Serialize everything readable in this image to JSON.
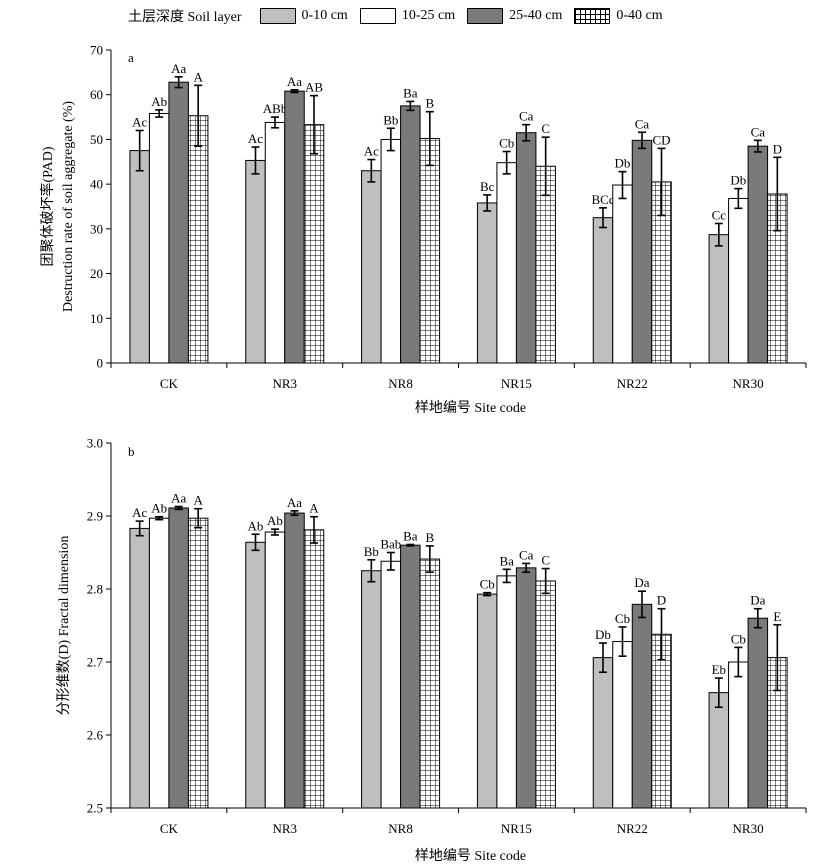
{
  "legend": {
    "title": "土层深度 Soil layer",
    "items": [
      {
        "label": "0-10 cm",
        "pattern": "light"
      },
      {
        "label": "10-25 cm",
        "pattern": "white"
      },
      {
        "label": "25-40 cm",
        "pattern": "dark"
      },
      {
        "label": "0-40 cm",
        "pattern": "grid"
      }
    ]
  },
  "colors": {
    "light": "#bfbfbf",
    "white": "#ffffff",
    "dark": "#7a7a7a",
    "grid": "#ffffff",
    "stroke": "#000000"
  },
  "chart_data": [
    {
      "type": "bar",
      "panel_label": "a",
      "ylabel_line1": "团聚体破坏率(PAD)",
      "ylabel_line2": "Destruction rate of soil aggregate (%)",
      "xlabel": "样地编号 Site code",
      "categories": [
        "CK",
        "NR3",
        "NR8",
        "NR15",
        "NR22",
        "NR30"
      ],
      "ylim": [
        0,
        70
      ],
      "yticks": [
        "0",
        "10",
        "20",
        "30",
        "40",
        "50",
        "60",
        "70"
      ],
      "series": [
        {
          "name": "0-10 cm",
          "values": [
            47.5,
            45.3,
            43.0,
            35.8,
            32.5,
            28.7
          ],
          "errors": [
            4.5,
            3.0,
            2.5,
            1.8,
            2.2,
            2.5
          ],
          "labels": [
            "Ac",
            "Ac",
            "Ac",
            "Bc",
            "BCc",
            "Cc"
          ]
        },
        {
          "name": "10-25 cm",
          "values": [
            55.8,
            53.8,
            50.0,
            44.8,
            39.8,
            36.8
          ],
          "errors": [
            0.8,
            1.2,
            2.5,
            2.5,
            3.0,
            2.2
          ],
          "labels": [
            "Ab",
            "ABb",
            "Bb",
            "Cb",
            "Db",
            "Db"
          ]
        },
        {
          "name": "25-40 cm",
          "values": [
            62.8,
            60.8,
            57.5,
            51.5,
            49.8,
            48.5
          ],
          "errors": [
            1.2,
            0.3,
            1.0,
            1.8,
            1.8,
            1.3
          ],
          "labels": [
            "Aa",
            "Aa",
            "Ba",
            "Ca",
            "Ca",
            "Ca"
          ]
        },
        {
          "name": "0-40 cm",
          "values": [
            55.3,
            53.3,
            50.2,
            44.0,
            40.5,
            37.8
          ],
          "errors": [
            6.8,
            6.5,
            6.0,
            6.5,
            7.5,
            8.2
          ],
          "labels": [
            "A",
            "AB",
            "B",
            "C",
            "CD",
            "D"
          ]
        }
      ]
    },
    {
      "type": "bar",
      "panel_label": "b",
      "ylabel_line1": "分形维数(D) Fractal dimension",
      "ylabel_line2": "",
      "xlabel": "样地编号 Site code",
      "categories": [
        "CK",
        "NR3",
        "NR8",
        "NR15",
        "NR22",
        "NR30"
      ],
      "ylim": [
        2.5,
        3.0
      ],
      "yticks": [
        "2.5",
        "2.6",
        "2.7",
        "2.8",
        "2.9",
        "3.0"
      ],
      "series": [
        {
          "name": "0-10 cm",
          "values": [
            2.883,
            2.864,
            2.825,
            2.793,
            2.706,
            2.658
          ],
          "errors": [
            0.01,
            0.011,
            0.015,
            0.002,
            0.02,
            0.02
          ],
          "labels": [
            "Ac",
            "Ab",
            "Bb",
            "Cb",
            "Db",
            "Eb"
          ]
        },
        {
          "name": "10-25 cm",
          "values": [
            2.897,
            2.878,
            2.838,
            2.818,
            2.728,
            2.7
          ],
          "errors": [
            0.002,
            0.004,
            0.012,
            0.009,
            0.02,
            0.02
          ],
          "labels": [
            "Ab",
            "Ab",
            "Bab",
            "Ba",
            "Cb",
            "Cb"
          ]
        },
        {
          "name": "25-40 cm",
          "values": [
            2.911,
            2.904,
            2.86,
            2.829,
            2.779,
            2.76
          ],
          "errors": [
            0.002,
            0.003,
            0.001,
            0.006,
            0.018,
            0.013
          ],
          "labels": [
            "Aa",
            "Aa",
            "Ba",
            "Ca",
            "Da",
            "Da"
          ]
        },
        {
          "name": "0-40 cm",
          "values": [
            2.897,
            2.881,
            2.841,
            2.811,
            2.738,
            2.706
          ],
          "errors": [
            0.013,
            0.018,
            0.018,
            0.017,
            0.035,
            0.045
          ],
          "labels": [
            "A",
            "A",
            "B",
            "C",
            "D",
            "E"
          ]
        }
      ]
    }
  ]
}
